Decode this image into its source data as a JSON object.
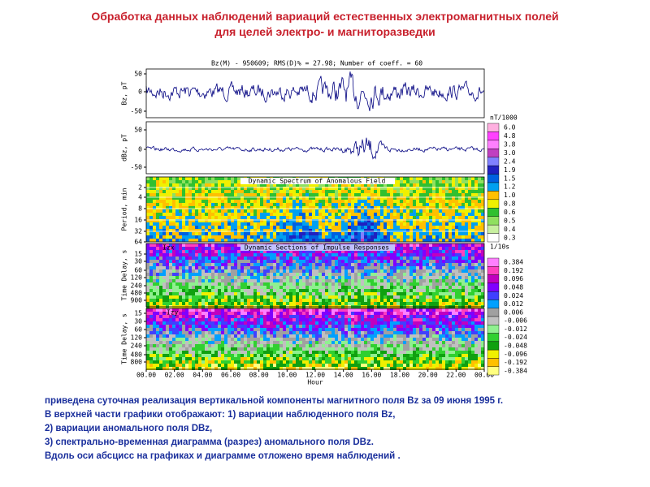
{
  "title": [
    "Обработка данных наблюдений вариаций естественных электромагнитных полей",
    "для целей электро- и магниторазведки"
  ],
  "figure": {
    "header": "Bz(M) - 950609;  RMS(D)% = 27.98;  Number of coeff. = 60",
    "panels": [
      {
        "ylabel": "Bz, pT",
        "yticks": [
          "50",
          "0",
          "-50"
        ]
      },
      {
        "ylabel": "dBz, pT",
        "yticks": [
          "50",
          "0",
          "-50"
        ]
      },
      {
        "title": "Dynamic Spectrum of Anomalous Field",
        "ylabel": "Period, min",
        "yticks": [
          "2",
          "4",
          "8",
          "16",
          "32",
          "64"
        ]
      },
      {
        "title": "Dynamic Sections of Impulse Responses",
        "tag": "Izx",
        "ylabel": "Time Delay, s",
        "yticks": [
          "15",
          "30",
          "60",
          "120",
          "240",
          "480",
          "900"
        ]
      },
      {
        "tag": "~Izy",
        "ylabel": "Time Delay, s",
        "yticks": [
          "15",
          "30",
          "60",
          "120",
          "240",
          "480",
          "800"
        ]
      }
    ],
    "xticks": [
      "00.00",
      "02.00",
      "04.00",
      "06.00",
      "08.00",
      "10.00",
      "12.00",
      "14.00",
      "16.00",
      "18.00",
      "20.00",
      "22.00",
      "00.00"
    ],
    "xlabel": "Hour",
    "colorbars": [
      {
        "unit": "nT/1000",
        "labels": [
          "6.0",
          "4.8",
          "3.8",
          "3.0",
          "2.4",
          "1.9",
          "1.5",
          "1.2",
          "1.0",
          "0.8",
          "0.6",
          "0.5",
          "0.4",
          "0.3"
        ]
      },
      {
        "unit": "1/10s",
        "labels": [
          "0.384",
          "0.192",
          "0.096",
          "0.048",
          "0.024",
          "0.012",
          "0.006",
          "-0.006",
          "-0.012",
          "-0.024",
          "-0.048",
          "-0.096",
          "-0.192",
          "-0.384"
        ]
      }
    ]
  },
  "caption": [
    "приведена суточная реализация вертикальной компоненты магнитного поля Bz за 09 июня 1995 г.",
    "В верхней части графики отображают: 1) вариации наблюденного поля Bz,",
    "2) вариации аномального поля DBz,",
    "3) спектрально-временная диаграмма (разрез) аномального поля DBz.",
    "Вдоль оси абсцисс на графиках и диаграмме отложено время наблюдений ."
  ]
}
